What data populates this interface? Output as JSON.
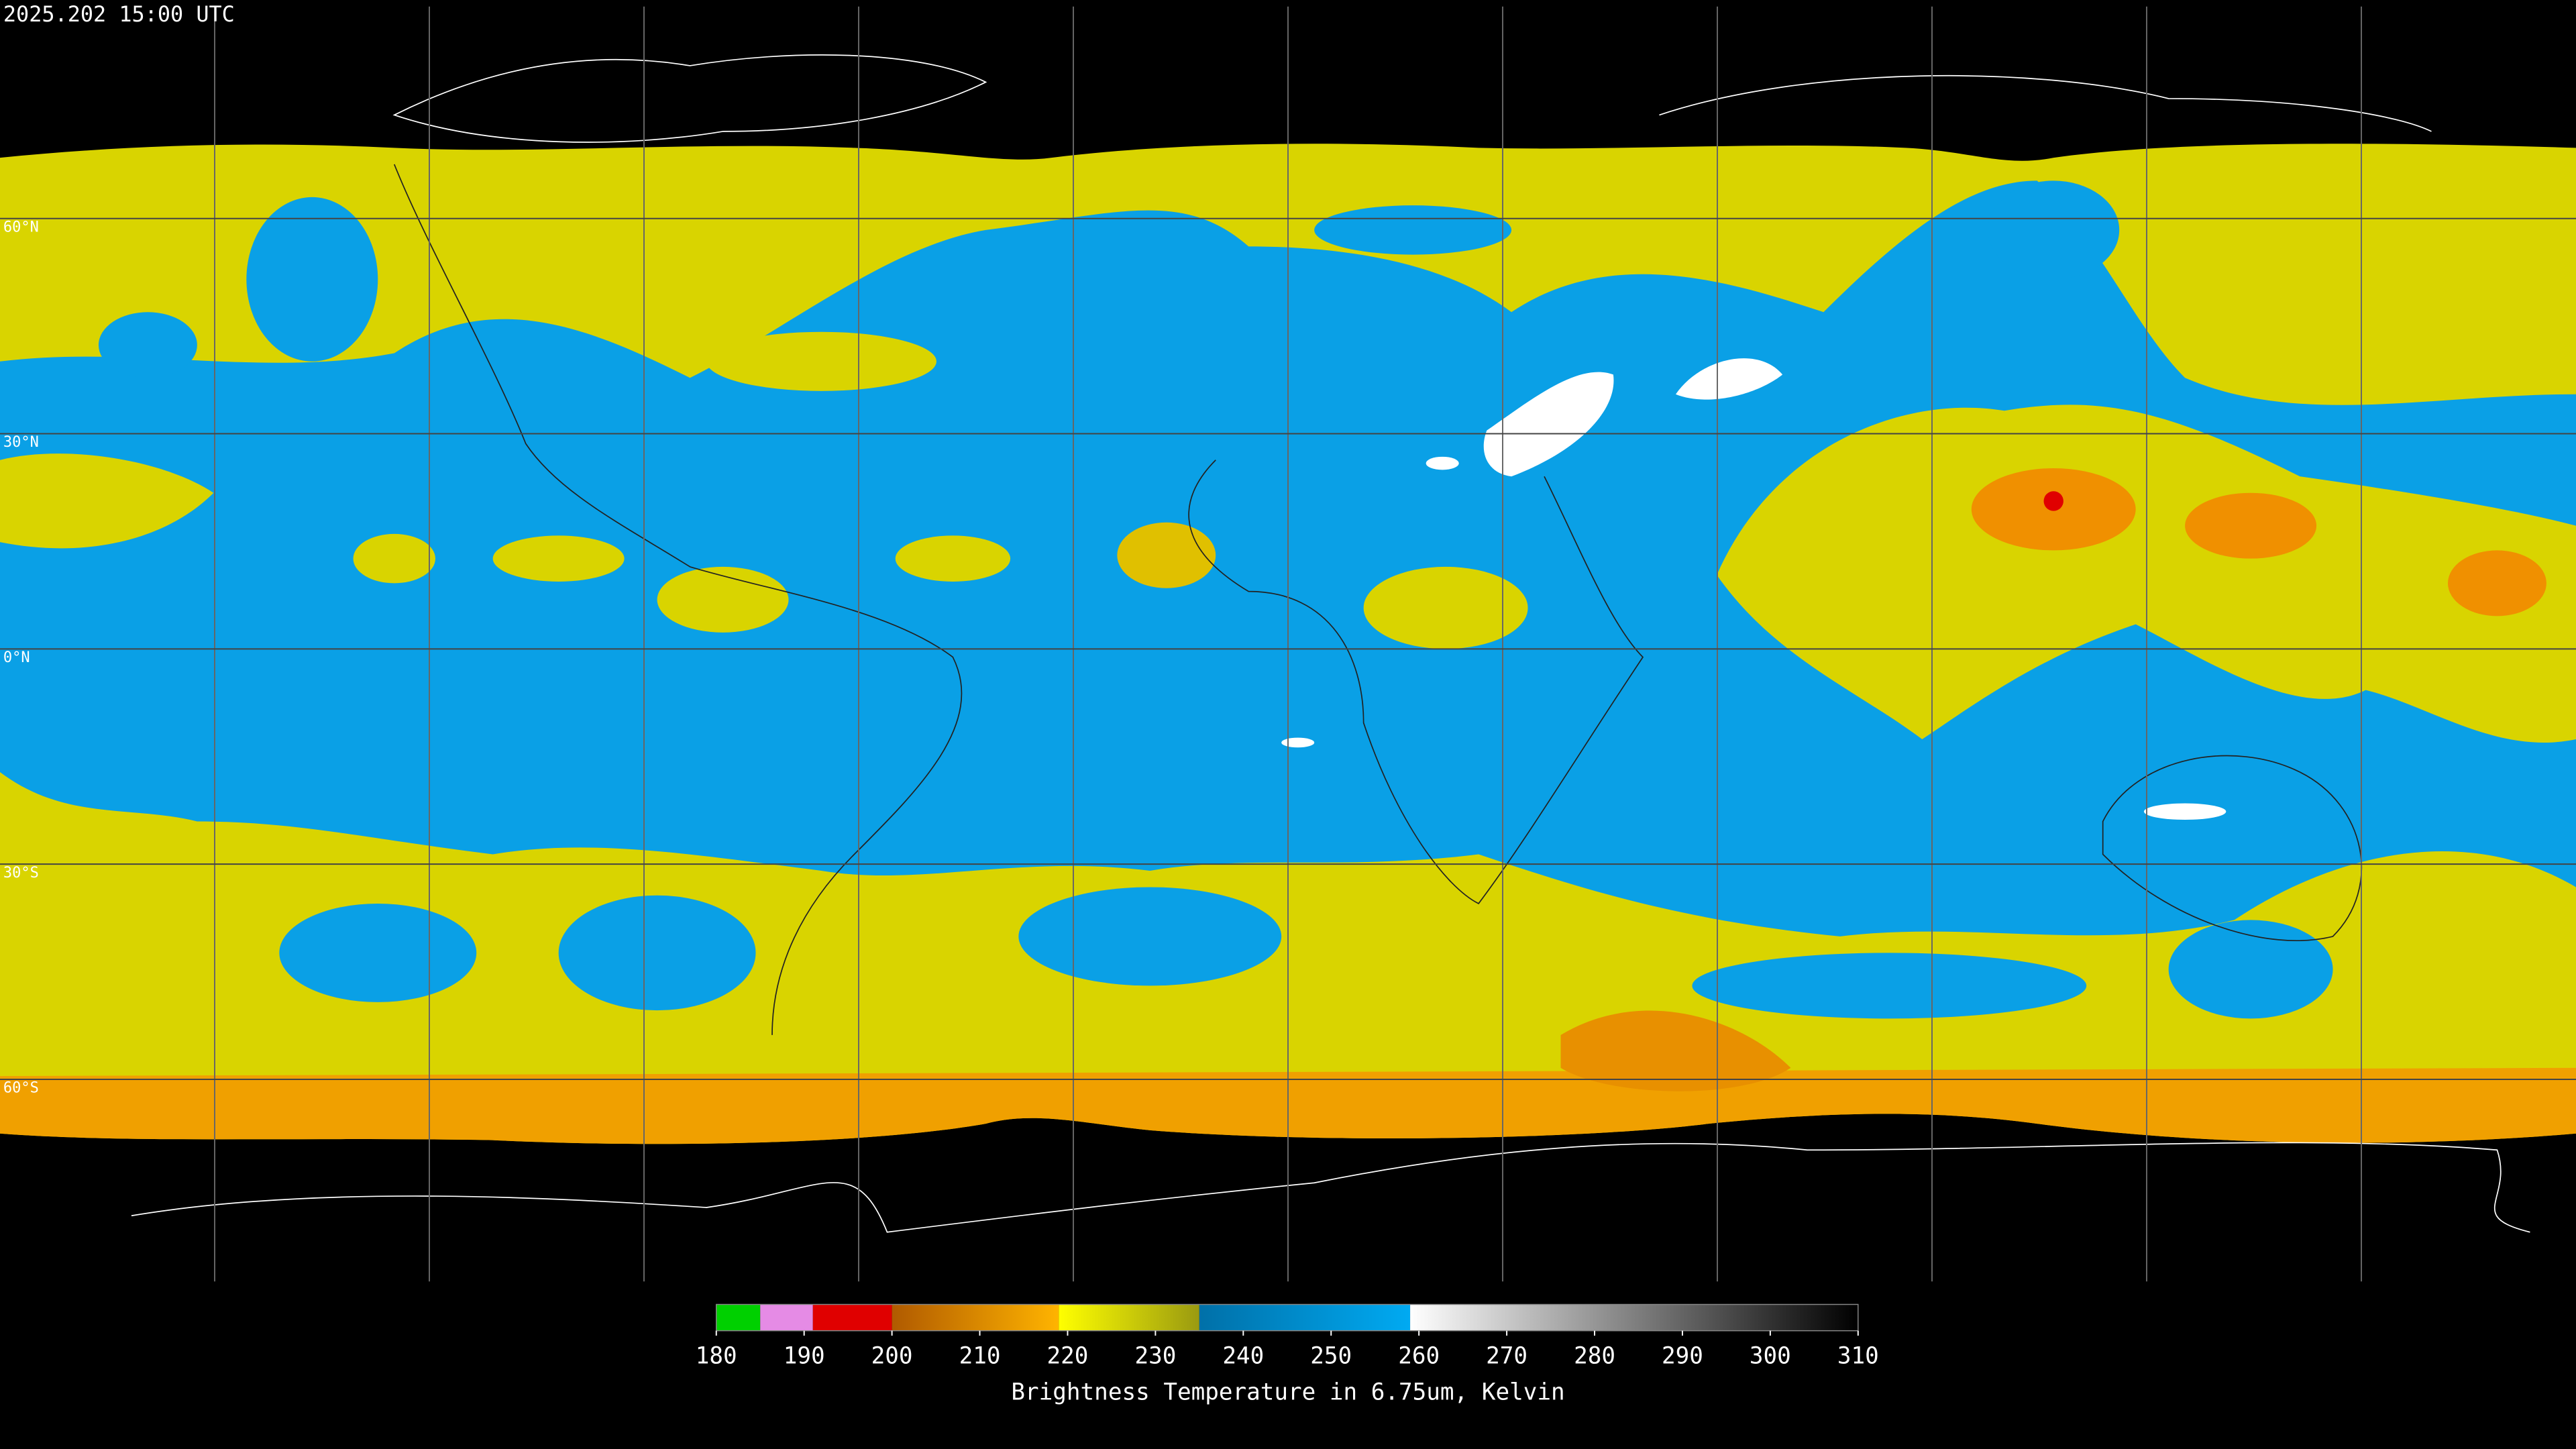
{
  "timestamp": "2025.202 15:00 UTC",
  "map": {
    "lat_ticks": [
      {
        "value": 60,
        "label": "60°N"
      },
      {
        "value": 30,
        "label": "30°N"
      },
      {
        "value": 0,
        "label": "0°N"
      },
      {
        "value": -30,
        "label": "30°S"
      },
      {
        "value": -60,
        "label": "60°S"
      }
    ]
  },
  "colorbar": {
    "range": [
      180,
      310
    ],
    "ticks": [
      180,
      190,
      200,
      210,
      220,
      230,
      240,
      250,
      260,
      270,
      280,
      290,
      300,
      310
    ],
    "segments": [
      {
        "from": 180,
        "to": 185,
        "colors": [
          "#00d000",
          "#00d000"
        ]
      },
      {
        "from": 185,
        "to": 191,
        "colors": [
          "#e58be5",
          "#e58be5"
        ]
      },
      {
        "from": 191,
        "to": 200,
        "colors": [
          "#e00000",
          "#e00000"
        ]
      },
      {
        "from": 200,
        "to": 219,
        "colors": [
          "#b05a00",
          "#ffb400"
        ]
      },
      {
        "from": 219,
        "to": 235,
        "colors": [
          "#ffff00",
          "#9a9a10"
        ]
      },
      {
        "from": 235,
        "to": 259,
        "colors": [
          "#0070a8",
          "#00aaf2"
        ]
      },
      {
        "from": 259,
        "to": 310,
        "colors": [
          "#ffffff",
          "#000000"
        ]
      }
    ],
    "label": "Brightness Temperature in 6.75um, Kelvin"
  }
}
